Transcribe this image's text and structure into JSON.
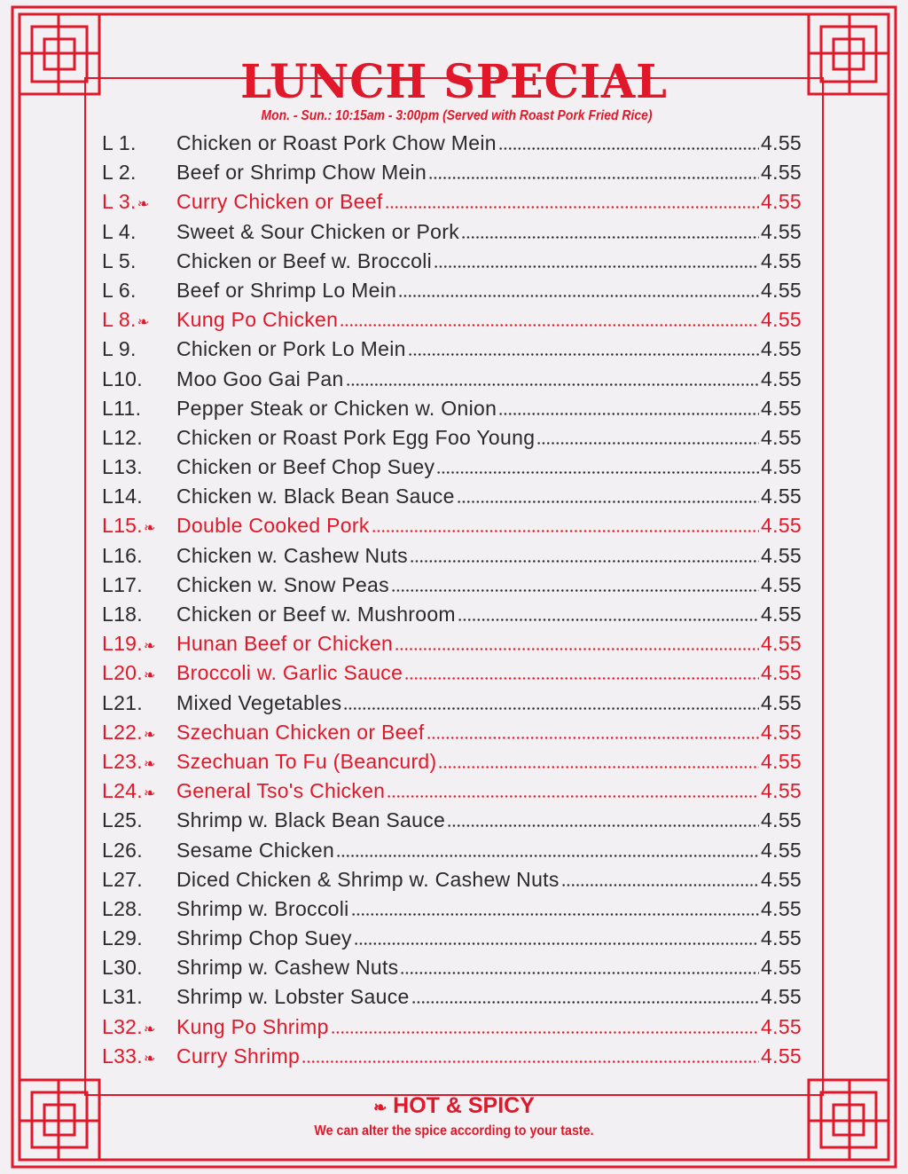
{
  "header": {
    "title": "LUNCH SPECIAL",
    "subtitle": "Mon. - Sun.: 10:15am - 3:00pm (Served with Roast Pork Fried Rice)"
  },
  "colors": {
    "accent": "#e0182a",
    "text": "#2a2a2a",
    "background": "#f2f0f2"
  },
  "items": [
    {
      "code": "L 1.",
      "name": "Chicken or Roast Pork Chow Mein",
      "price": "4.55",
      "spicy": false
    },
    {
      "code": "L 2.",
      "name": "Beef or Shrimp Chow Mein",
      "price": "4.55",
      "spicy": false
    },
    {
      "code": "L 3.",
      "name": "Curry Chicken or Beef",
      "price": "4.55",
      "spicy": true
    },
    {
      "code": "L 4.",
      "name": "Sweet & Sour Chicken or Pork",
      "price": "4.55",
      "spicy": false
    },
    {
      "code": "L 5.",
      "name": "Chicken or Beef w. Broccoli",
      "price": "4.55",
      "spicy": false
    },
    {
      "code": "L 6.",
      "name": "Beef or Shrimp Lo Mein",
      "price": "4.55",
      "spicy": false
    },
    {
      "code": "L 8.",
      "name": "Kung Po Chicken",
      "price": "4.55",
      "spicy": true
    },
    {
      "code": "L 9.",
      "name": "Chicken or Pork Lo Mein",
      "price": "4.55",
      "spicy": false
    },
    {
      "code": "L10.",
      "name": "Moo Goo Gai Pan",
      "price": "4.55",
      "spicy": false
    },
    {
      "code": "L11.",
      "name": "Pepper Steak or Chicken w. Onion",
      "price": "4.55",
      "spicy": false
    },
    {
      "code": "L12.",
      "name": "Chicken or Roast Pork Egg Foo Young",
      "price": "4.55",
      "spicy": false
    },
    {
      "code": "L13.",
      "name": "Chicken or Beef Chop Suey",
      "price": "4.55",
      "spicy": false
    },
    {
      "code": "L14.",
      "name": "Chicken w. Black Bean Sauce",
      "price": "4.55",
      "spicy": false
    },
    {
      "code": "L15.",
      "name": "Double Cooked Pork",
      "price": "4.55",
      "spicy": true
    },
    {
      "code": "L16.",
      "name": "Chicken w. Cashew Nuts",
      "price": "4.55",
      "spicy": false
    },
    {
      "code": "L17.",
      "name": "Chicken w. Snow Peas",
      "price": "4.55",
      "spicy": false
    },
    {
      "code": "L18.",
      "name": "Chicken or Beef w. Mushroom",
      "price": "4.55",
      "spicy": false
    },
    {
      "code": "L19.",
      "name": "Hunan Beef or Chicken",
      "price": "4.55",
      "spicy": true
    },
    {
      "code": "L20.",
      "name": "Broccoli w. Garlic Sauce",
      "price": "4.55",
      "spicy": true
    },
    {
      "code": "L21.",
      "name": "Mixed Vegetables",
      "price": "4.55",
      "spicy": false
    },
    {
      "code": "L22.",
      "name": "Szechuan Chicken or Beef",
      "price": "4.55",
      "spicy": true
    },
    {
      "code": "L23.",
      "name": "Szechuan To Fu (Beancurd)",
      "price": "4.55",
      "spicy": true
    },
    {
      "code": "L24.",
      "name": "General Tso's Chicken",
      "price": "4.55",
      "spicy": true
    },
    {
      "code": "L25.",
      "name": "Shrimp w. Black Bean Sauce",
      "price": "4.55",
      "spicy": false
    },
    {
      "code": "L26.",
      "name": "Sesame Chicken",
      "price": "4.55",
      "spicy": false
    },
    {
      "code": "L27.",
      "name": "Diced Chicken & Shrimp w. Cashew Nuts",
      "price": "4.55",
      "spicy": false
    },
    {
      "code": "L28.",
      "name": "Shrimp w. Broccoli",
      "price": "4.55",
      "spicy": false
    },
    {
      "code": "L29.",
      "name": "Shrimp Chop Suey",
      "price": "4.55",
      "spicy": false
    },
    {
      "code": "L30.",
      "name": "Shrimp w. Cashew Nuts",
      "price": "4.55",
      "spicy": false
    },
    {
      "code": "L31.",
      "name": "Shrimp w. Lobster Sauce",
      "price": "4.55",
      "spicy": false
    },
    {
      "code": "L32.",
      "name": "Kung Po Shrimp",
      "price": "4.55",
      "spicy": true
    },
    {
      "code": "L33.",
      "name": "Curry Shrimp",
      "price": "4.55",
      "spicy": true
    }
  ],
  "footer": {
    "legend_icon": "chili-pepper-icon",
    "legend_label": "HOT & SPICY",
    "note": "We can alter the spice according to your taste."
  }
}
